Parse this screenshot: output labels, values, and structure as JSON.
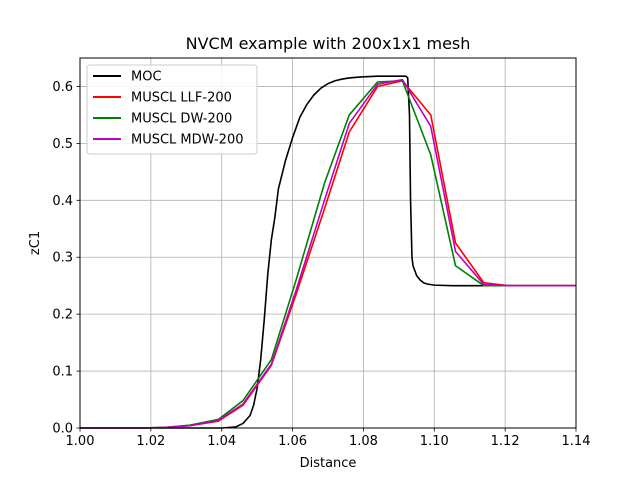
{
  "chart_data": {
    "type": "line",
    "title": "NVCM example with 200x1x1 mesh",
    "xlabel": "Distance",
    "ylabel": "zC1",
    "xlim": [
      1.0,
      1.14
    ],
    "ylim": [
      0.0,
      0.65
    ],
    "xticks": [
      1.0,
      1.02,
      1.04,
      1.06,
      1.08,
      1.1,
      1.12,
      1.14
    ],
    "xtick_labels": [
      "1.00",
      "1.02",
      "1.04",
      "1.06",
      "1.08",
      "1.10",
      "1.12",
      "1.14"
    ],
    "yticks": [
      0.0,
      0.1,
      0.2,
      0.3,
      0.4,
      0.5,
      0.6
    ],
    "ytick_labels": [
      "0.0",
      "0.1",
      "0.2",
      "0.3",
      "0.4",
      "0.5",
      "0.6"
    ],
    "grid": true,
    "legend_position": "upper-left",
    "series": [
      {
        "name": "MOC",
        "color": "#000000",
        "x": [
          1.0,
          1.03,
          1.04,
          1.044,
          1.046,
          1.048,
          1.049,
          1.05,
          1.051,
          1.052,
          1.053,
          1.054,
          1.055,
          1.056,
          1.058,
          1.06,
          1.062,
          1.064,
          1.066,
          1.068,
          1.07,
          1.072,
          1.074,
          1.076,
          1.078,
          1.08,
          1.084,
          1.088,
          1.09,
          1.092,
          1.0925,
          1.093,
          1.0933,
          1.0937,
          1.094,
          1.095,
          1.096,
          1.097,
          1.098,
          1.1,
          1.105,
          1.11,
          1.12,
          1.14
        ],
        "y": [
          0.0,
          0.0,
          0.0,
          0.002,
          0.008,
          0.022,
          0.04,
          0.07,
          0.12,
          0.19,
          0.27,
          0.33,
          0.37,
          0.42,
          0.47,
          0.51,
          0.545,
          0.568,
          0.585,
          0.597,
          0.605,
          0.61,
          0.613,
          0.615,
          0.616,
          0.617,
          0.618,
          0.618,
          0.618,
          0.618,
          0.615,
          0.55,
          0.4,
          0.3,
          0.285,
          0.268,
          0.26,
          0.255,
          0.253,
          0.251,
          0.25,
          0.25,
          0.25,
          0.25
        ]
      },
      {
        "name": "MUSCL LLF-200",
        "color": "#ff0000",
        "x": [
          1.0,
          1.017,
          1.024,
          1.031,
          1.039,
          1.046,
          1.054,
          1.061,
          1.069,
          1.076,
          1.084,
          1.091,
          1.099,
          1.106,
          1.114,
          1.121,
          1.14
        ],
        "y": [
          0.0,
          0.0,
          0.001,
          0.004,
          0.012,
          0.04,
          0.11,
          0.235,
          0.385,
          0.52,
          0.6,
          0.61,
          0.55,
          0.325,
          0.255,
          0.25,
          0.25
        ]
      },
      {
        "name": "MUSCL DW-200",
        "color": "#008000",
        "x": [
          1.0,
          1.017,
          1.024,
          1.031,
          1.039,
          1.046,
          1.054,
          1.061,
          1.069,
          1.076,
          1.084,
          1.091,
          1.099,
          1.106,
          1.114,
          1.121,
          1.14
        ],
        "y": [
          0.0,
          0.0,
          0.001,
          0.005,
          0.015,
          0.048,
          0.12,
          0.26,
          0.43,
          0.55,
          0.608,
          0.61,
          0.48,
          0.285,
          0.25,
          0.25,
          0.25
        ]
      },
      {
        "name": "MUSCL MDW-200",
        "color": "#c000c0",
        "x": [
          1.0,
          1.017,
          1.024,
          1.031,
          1.039,
          1.046,
          1.054,
          1.061,
          1.069,
          1.076,
          1.084,
          1.091,
          1.099,
          1.106,
          1.114,
          1.121,
          1.14
        ],
        "y": [
          0.0,
          0.0,
          0.001,
          0.004,
          0.013,
          0.042,
          0.112,
          0.242,
          0.4,
          0.535,
          0.604,
          0.612,
          0.53,
          0.31,
          0.252,
          0.25,
          0.25
        ]
      }
    ]
  }
}
